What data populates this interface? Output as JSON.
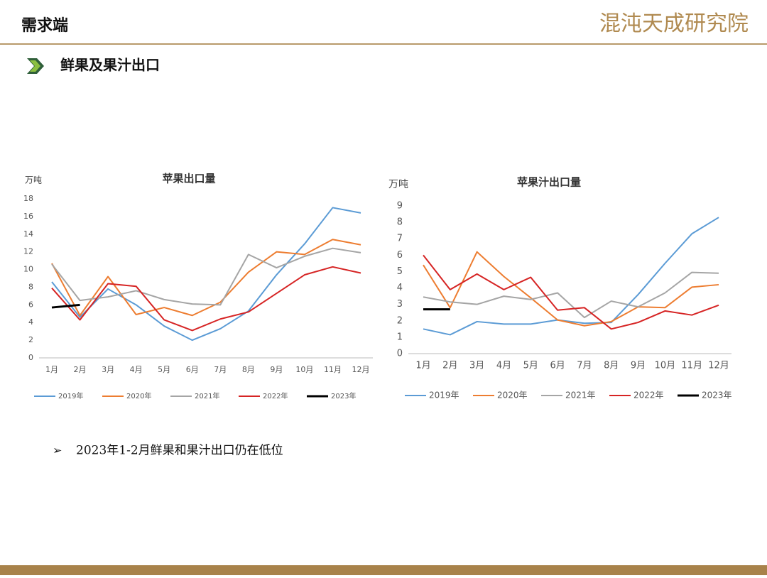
{
  "header": {
    "title": "需求端",
    "logo": "混沌天成研究院",
    "section": "鲜果及果汁出口"
  },
  "bullet": "2023年1-2月鲜果和果汁出口仍在低位",
  "chart_data": [
    {
      "type": "line",
      "title": "苹果出口量",
      "ylabel": "万吨",
      "categories": [
        "1月",
        "2月",
        "3月",
        "4月",
        "5月",
        "6月",
        "7月",
        "8月",
        "9月",
        "10月",
        "11月",
        "12月"
      ],
      "ylim": [
        0,
        18
      ],
      "yticks": [
        0,
        2,
        4,
        6,
        8,
        10,
        12,
        14,
        16,
        18
      ],
      "legend": "bottom",
      "series": [
        {
          "name": "2019年",
          "color": "#5b9bd5",
          "values": [
            8.6,
            4.6,
            7.8,
            6.0,
            3.6,
            2.0,
            3.3,
            5.3,
            9.4,
            12.9,
            17.0,
            16.4
          ]
        },
        {
          "name": "2020年",
          "color": "#ed7d31",
          "values": [
            10.7,
            4.8,
            9.2,
            4.9,
            5.7,
            4.8,
            6.3,
            9.7,
            12.0,
            11.7,
            13.4,
            12.8
          ]
        },
        {
          "name": "2021年",
          "color": "#a5a5a5",
          "values": [
            10.6,
            6.5,
            6.9,
            7.6,
            6.6,
            6.1,
            6.0,
            11.7,
            10.2,
            11.5,
            12.4,
            11.9
          ]
        },
        {
          "name": "2022年",
          "color": "#d62424",
          "values": [
            7.9,
            4.3,
            8.4,
            8.1,
            4.3,
            3.1,
            4.4,
            5.2,
            7.3,
            9.4,
            10.3,
            9.6
          ]
        },
        {
          "name": "2023年",
          "color": "#000000",
          "values": [
            5.7,
            6.0,
            null,
            null,
            null,
            null,
            null,
            null,
            null,
            null,
            null,
            null
          ]
        }
      ]
    },
    {
      "type": "line",
      "title": "苹果汁出口量",
      "ylabel": "万吨",
      "categories": [
        "1月",
        "2月",
        "3月",
        "4月",
        "5月",
        "6月",
        "7月",
        "8月",
        "9月",
        "10月",
        "11月",
        "12月"
      ],
      "ylim": [
        0,
        9
      ],
      "yticks": [
        0,
        1,
        2,
        3,
        4,
        5,
        6,
        7,
        8,
        9
      ],
      "legend": "bottom",
      "series": [
        {
          "name": "2019年",
          "color": "#5b9bd5",
          "values": [
            1.5,
            1.15,
            1.95,
            1.8,
            1.8,
            2.05,
            1.85,
            1.9,
            3.6,
            5.5,
            7.3,
            8.3
          ]
        },
        {
          "name": "2020年",
          "color": "#ed7d31",
          "values": [
            5.4,
            2.8,
            6.2,
            4.7,
            3.4,
            2.05,
            1.7,
            1.95,
            2.85,
            2.8,
            4.05,
            4.2
          ]
        },
        {
          "name": "2021年",
          "color": "#a5a5a5",
          "values": [
            3.45,
            3.15,
            3.0,
            3.5,
            3.3,
            3.7,
            2.2,
            3.2,
            2.85,
            3.7,
            4.95,
            4.9
          ]
        },
        {
          "name": "2022年",
          "color": "#d62424",
          "values": [
            6.0,
            3.9,
            4.85,
            3.9,
            4.65,
            2.65,
            2.8,
            1.5,
            1.9,
            2.6,
            2.35,
            2.95
          ]
        },
        {
          "name": "2023年",
          "color": "#000000",
          "values": [
            2.7,
            2.7,
            null,
            null,
            null,
            null,
            null,
            null,
            null,
            null,
            null,
            null
          ]
        }
      ]
    }
  ]
}
